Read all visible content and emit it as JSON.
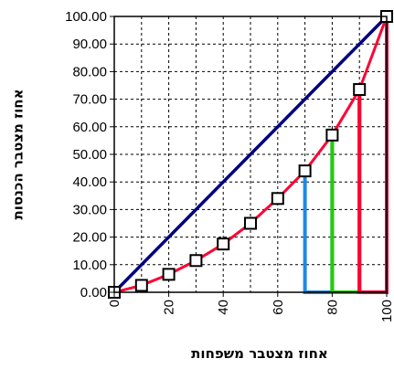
{
  "chart_data": {
    "type": "line",
    "xlabel": "אחוז מצטבר משפחות",
    "ylabel": "אחוז מצטבר הכנסות",
    "xlim": [
      0,
      100
    ],
    "ylim": [
      0,
      100
    ],
    "x_ticks": [
      "0",
      "20",
      "40",
      "60",
      "80",
      "100"
    ],
    "y_ticks": [
      "0.00",
      "10.00",
      "20.00",
      "30.00",
      "40.00",
      "50.00",
      "60.00",
      "70.00",
      "80.00",
      "90.00",
      "100.00"
    ],
    "grid": true,
    "legend": false,
    "series": [
      {
        "kind": "equality-line",
        "color": "#000080",
        "points": [
          [
            0,
            0
          ],
          [
            100,
            100
          ]
        ]
      },
      {
        "kind": "lorenz-curve",
        "color": "#ff0033",
        "marker": "square",
        "points": [
          [
            0,
            0
          ],
          [
            10,
            2.5
          ],
          [
            20,
            6.5
          ],
          [
            30,
            11.5
          ],
          [
            40,
            17.5
          ],
          [
            50,
            25
          ],
          [
            60,
            34
          ],
          [
            70,
            44
          ],
          [
            80,
            57
          ],
          [
            90,
            73.5
          ],
          [
            100,
            100
          ]
        ]
      },
      {
        "kind": "strip",
        "color": "#1e88e5",
        "points": [
          [
            70,
            44
          ],
          [
            70,
            0
          ],
          [
            80,
            0
          ],
          [
            80,
            57
          ]
        ]
      },
      {
        "kind": "strip",
        "color": "#22cc00",
        "points": [
          [
            80,
            57
          ],
          [
            80,
            0
          ],
          [
            90,
            0
          ],
          [
            90,
            73.5
          ]
        ]
      },
      {
        "kind": "strip",
        "color": "#ff0033",
        "points": [
          [
            90,
            73.5
          ],
          [
            90,
            0
          ],
          [
            100,
            0
          ],
          [
            100,
            100
          ]
        ]
      }
    ]
  }
}
